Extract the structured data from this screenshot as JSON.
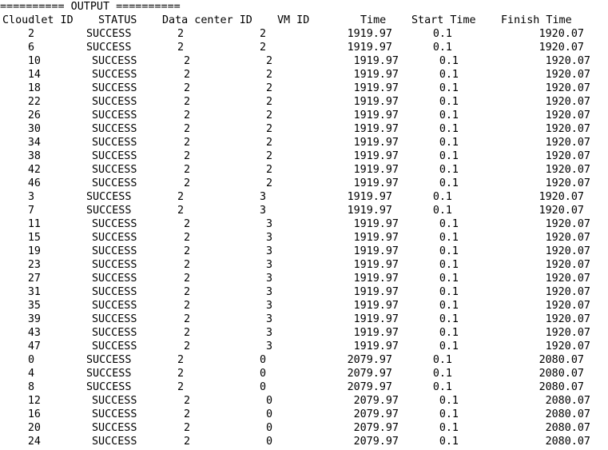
{
  "console": {
    "banner": "========== OUTPUT ==========",
    "headers": [
      "Cloudlet ID",
      "STATUS",
      "Data center ID",
      "VM ID",
      "Time",
      "Start Time",
      "Finish Time"
    ],
    "rows": [
      {
        "cloudlet_id": "2",
        "status": "SUCCESS",
        "datacenter_id": "2",
        "vm_id": "2",
        "time": "1919.97",
        "start_time": "0.1",
        "finish_time": "1920.07"
      },
      {
        "cloudlet_id": "6",
        "status": "SUCCESS",
        "datacenter_id": "2",
        "vm_id": "2",
        "time": "1919.97",
        "start_time": "0.1",
        "finish_time": "1920.07"
      },
      {
        "cloudlet_id": "10",
        "status": "SUCCESS",
        "datacenter_id": "2",
        "vm_id": "2",
        "time": "1919.97",
        "start_time": "0.1",
        "finish_time": "1920.07"
      },
      {
        "cloudlet_id": "14",
        "status": "SUCCESS",
        "datacenter_id": "2",
        "vm_id": "2",
        "time": "1919.97",
        "start_time": "0.1",
        "finish_time": "1920.07"
      },
      {
        "cloudlet_id": "18",
        "status": "SUCCESS",
        "datacenter_id": "2",
        "vm_id": "2",
        "time": "1919.97",
        "start_time": "0.1",
        "finish_time": "1920.07"
      },
      {
        "cloudlet_id": "22",
        "status": "SUCCESS",
        "datacenter_id": "2",
        "vm_id": "2",
        "time": "1919.97",
        "start_time": "0.1",
        "finish_time": "1920.07"
      },
      {
        "cloudlet_id": "26",
        "status": "SUCCESS",
        "datacenter_id": "2",
        "vm_id": "2",
        "time": "1919.97",
        "start_time": "0.1",
        "finish_time": "1920.07"
      },
      {
        "cloudlet_id": "30",
        "status": "SUCCESS",
        "datacenter_id": "2",
        "vm_id": "2",
        "time": "1919.97",
        "start_time": "0.1",
        "finish_time": "1920.07"
      },
      {
        "cloudlet_id": "34",
        "status": "SUCCESS",
        "datacenter_id": "2",
        "vm_id": "2",
        "time": "1919.97",
        "start_time": "0.1",
        "finish_time": "1920.07"
      },
      {
        "cloudlet_id": "38",
        "status": "SUCCESS",
        "datacenter_id": "2",
        "vm_id": "2",
        "time": "1919.97",
        "start_time": "0.1",
        "finish_time": "1920.07"
      },
      {
        "cloudlet_id": "42",
        "status": "SUCCESS",
        "datacenter_id": "2",
        "vm_id": "2",
        "time": "1919.97",
        "start_time": "0.1",
        "finish_time": "1920.07"
      },
      {
        "cloudlet_id": "46",
        "status": "SUCCESS",
        "datacenter_id": "2",
        "vm_id": "2",
        "time": "1919.97",
        "start_time": "0.1",
        "finish_time": "1920.07"
      },
      {
        "cloudlet_id": "3",
        "status": "SUCCESS",
        "datacenter_id": "2",
        "vm_id": "3",
        "time": "1919.97",
        "start_time": "0.1",
        "finish_time": "1920.07"
      },
      {
        "cloudlet_id": "7",
        "status": "SUCCESS",
        "datacenter_id": "2",
        "vm_id": "3",
        "time": "1919.97",
        "start_time": "0.1",
        "finish_time": "1920.07"
      },
      {
        "cloudlet_id": "11",
        "status": "SUCCESS",
        "datacenter_id": "2",
        "vm_id": "3",
        "time": "1919.97",
        "start_time": "0.1",
        "finish_time": "1920.07"
      },
      {
        "cloudlet_id": "15",
        "status": "SUCCESS",
        "datacenter_id": "2",
        "vm_id": "3",
        "time": "1919.97",
        "start_time": "0.1",
        "finish_time": "1920.07"
      },
      {
        "cloudlet_id": "19",
        "status": "SUCCESS",
        "datacenter_id": "2",
        "vm_id": "3",
        "time": "1919.97",
        "start_time": "0.1",
        "finish_time": "1920.07"
      },
      {
        "cloudlet_id": "23",
        "status": "SUCCESS",
        "datacenter_id": "2",
        "vm_id": "3",
        "time": "1919.97",
        "start_time": "0.1",
        "finish_time": "1920.07"
      },
      {
        "cloudlet_id": "27",
        "status": "SUCCESS",
        "datacenter_id": "2",
        "vm_id": "3",
        "time": "1919.97",
        "start_time": "0.1",
        "finish_time": "1920.07"
      },
      {
        "cloudlet_id": "31",
        "status": "SUCCESS",
        "datacenter_id": "2",
        "vm_id": "3",
        "time": "1919.97",
        "start_time": "0.1",
        "finish_time": "1920.07"
      },
      {
        "cloudlet_id": "35",
        "status": "SUCCESS",
        "datacenter_id": "2",
        "vm_id": "3",
        "time": "1919.97",
        "start_time": "0.1",
        "finish_time": "1920.07"
      },
      {
        "cloudlet_id": "39",
        "status": "SUCCESS",
        "datacenter_id": "2",
        "vm_id": "3",
        "time": "1919.97",
        "start_time": "0.1",
        "finish_time": "1920.07"
      },
      {
        "cloudlet_id": "43",
        "status": "SUCCESS",
        "datacenter_id": "2",
        "vm_id": "3",
        "time": "1919.97",
        "start_time": "0.1",
        "finish_time": "1920.07"
      },
      {
        "cloudlet_id": "47",
        "status": "SUCCESS",
        "datacenter_id": "2",
        "vm_id": "3",
        "time": "1919.97",
        "start_time": "0.1",
        "finish_time": "1920.07"
      },
      {
        "cloudlet_id": "0",
        "status": "SUCCESS",
        "datacenter_id": "2",
        "vm_id": "0",
        "time": "2079.97",
        "start_time": "0.1",
        "finish_time": "2080.07"
      },
      {
        "cloudlet_id": "4",
        "status": "SUCCESS",
        "datacenter_id": "2",
        "vm_id": "0",
        "time": "2079.97",
        "start_time": "0.1",
        "finish_time": "2080.07"
      },
      {
        "cloudlet_id": "8",
        "status": "SUCCESS",
        "datacenter_id": "2",
        "vm_id": "0",
        "time": "2079.97",
        "start_time": "0.1",
        "finish_time": "2080.07"
      },
      {
        "cloudlet_id": "12",
        "status": "SUCCESS",
        "datacenter_id": "2",
        "vm_id": "0",
        "time": "2079.97",
        "start_time": "0.1",
        "finish_time": "2080.07"
      },
      {
        "cloudlet_id": "16",
        "status": "SUCCESS",
        "datacenter_id": "2",
        "vm_id": "0",
        "time": "2079.97",
        "start_time": "0.1",
        "finish_time": "2080.07"
      },
      {
        "cloudlet_id": "20",
        "status": "SUCCESS",
        "datacenter_id": "2",
        "vm_id": "0",
        "time": "2079.97",
        "start_time": "0.1",
        "finish_time": "2080.07"
      },
      {
        "cloudlet_id": "24",
        "status": "SUCCESS",
        "datacenter_id": "2",
        "vm_id": "0",
        "time": "2079.97",
        "start_time": "0.1",
        "finish_time": "2080.07"
      }
    ]
  }
}
